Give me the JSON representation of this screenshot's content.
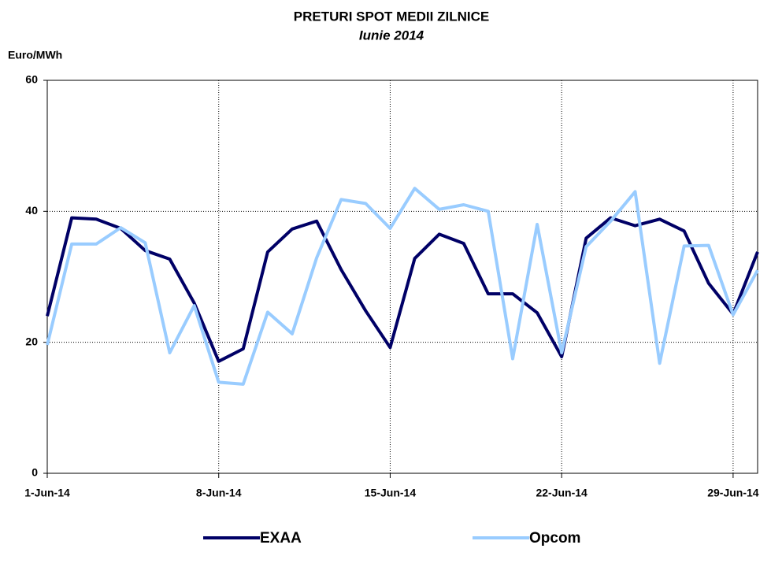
{
  "chart_data": {
    "type": "line",
    "title": "PRETURI SPOT MEDII ZILNICE",
    "subtitle": "Iunie 2014",
    "y_label": "Euro/MWh",
    "x": [
      "2014-06-01",
      "2014-06-02",
      "2014-06-03",
      "2014-06-04",
      "2014-06-05",
      "2014-06-06",
      "2014-06-07",
      "2014-06-08",
      "2014-06-09",
      "2014-06-10",
      "2014-06-11",
      "2014-06-12",
      "2014-06-13",
      "2014-06-14",
      "2014-06-15",
      "2014-06-16",
      "2014-06-17",
      "2014-06-18",
      "2014-06-19",
      "2014-06-20",
      "2014-06-21",
      "2014-06-22",
      "2014-06-23",
      "2014-06-24",
      "2014-06-25",
      "2014-06-26",
      "2014-06-27",
      "2014-06-28",
      "2014-06-29",
      "2014-06-30"
    ],
    "series": [
      {
        "name": "EXAA",
        "color": "#000066",
        "values": [
          24,
          39,
          38.8,
          37.4,
          34,
          32.7,
          26,
          17.1,
          19,
          33.8,
          37.3,
          38.5,
          31.1,
          24.8,
          19.2,
          32.8,
          36.5,
          35.1,
          27.4,
          27.4,
          24.5,
          17.8,
          35.9,
          39,
          37.8,
          38.8,
          37,
          29,
          24.3,
          33.8
        ]
      },
      {
        "name": "Opcom",
        "color": "#99ccff",
        "values": [
          19.6,
          35,
          35,
          37.5,
          35.2,
          18.4,
          25.6,
          13.9,
          13.6,
          24.6,
          21.3,
          32.9,
          41.8,
          41.2,
          37.4,
          43.5,
          40.3,
          41,
          40,
          17.5,
          38,
          18.4,
          34.6,
          38.5,
          43,
          16.8,
          34.7,
          34.8,
          24.2,
          31
        ]
      }
    ],
    "xlim": [
      "2014-06-01",
      "2014-06-30"
    ],
    "xticks": [
      {
        "value": "2014-06-01",
        "label": "1-Jun-14"
      },
      {
        "value": "2014-06-08",
        "label": "8-Jun-14"
      },
      {
        "value": "2014-06-15",
        "label": "15-Jun-14"
      },
      {
        "value": "2014-06-22",
        "label": "22-Jun-14"
      },
      {
        "value": "2014-06-29",
        "label": "29-Jun-14"
      }
    ],
    "ylim": [
      0,
      60
    ],
    "yticks": [
      0,
      20,
      40,
      60
    ],
    "grid": true,
    "legend": "bottom"
  }
}
